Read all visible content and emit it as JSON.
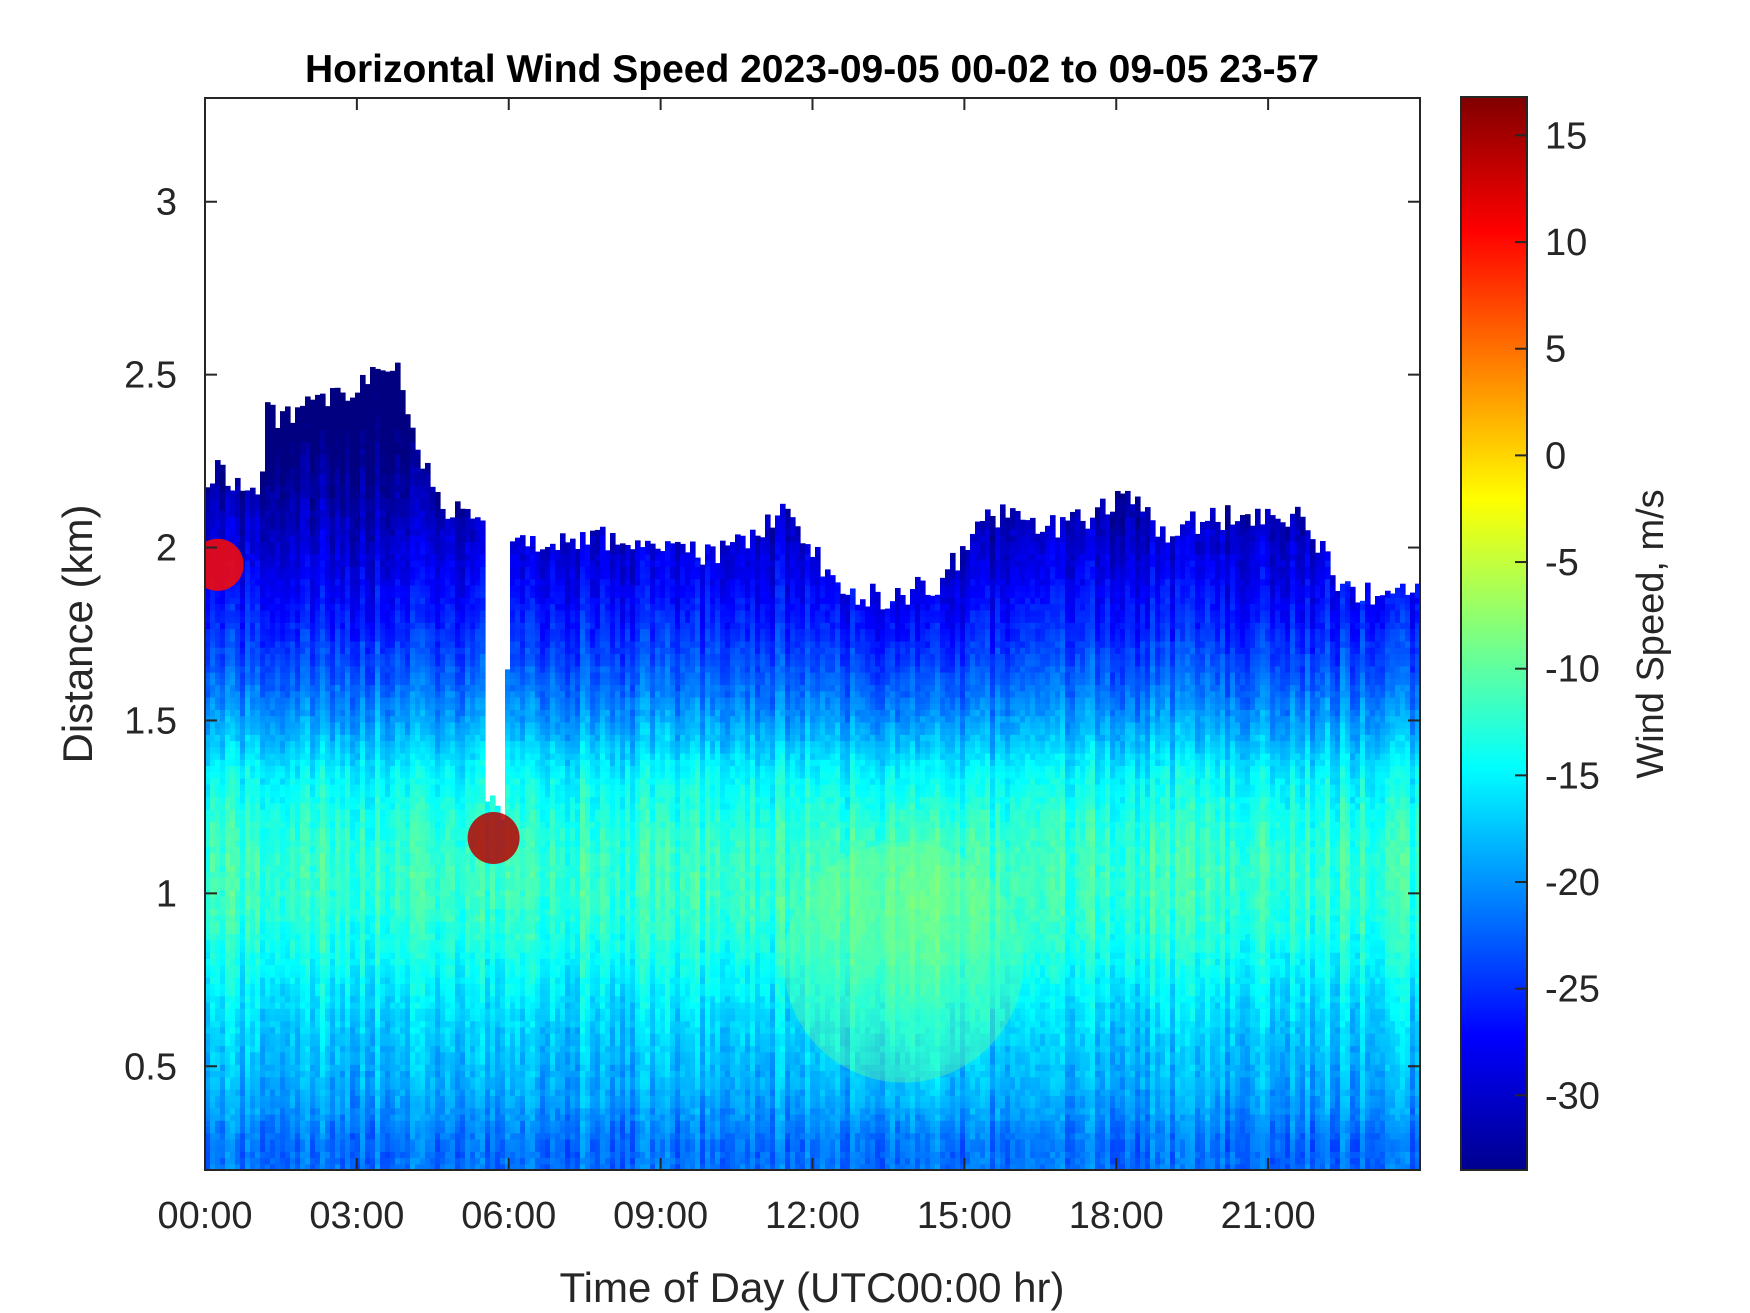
{
  "chart_data": {
    "type": "heatmap",
    "title": "Horizontal Wind Speed 2023-09-05 00-02 to 09-05 23-57",
    "xlabel": "Time of Day (UTC00:00 hr)",
    "ylabel": "Distance (km)",
    "colorbar_label": "Wind Speed, m/s",
    "colormap": "jet",
    "xlim_hours": [
      0,
      24
    ],
    "ylim_km": [
      0.2,
      3.3
    ],
    "clim": [
      -33.5,
      16.8
    ],
    "x_ticks": [
      {
        "value": 0,
        "label": "00:00"
      },
      {
        "value": 3,
        "label": "03:00"
      },
      {
        "value": 6,
        "label": "06:00"
      },
      {
        "value": 9,
        "label": "09:00"
      },
      {
        "value": 12,
        "label": "12:00"
      },
      {
        "value": 15,
        "label": "15:00"
      },
      {
        "value": 18,
        "label": "18:00"
      },
      {
        "value": 21,
        "label": "21:00"
      }
    ],
    "y_ticks": [
      {
        "value": 0.5,
        "label": "0.5"
      },
      {
        "value": 1,
        "label": "1"
      },
      {
        "value": 1.5,
        "label": "1.5"
      },
      {
        "value": 2,
        "label": "2"
      },
      {
        "value": 2.5,
        "label": "2.5"
      },
      {
        "value": 3,
        "label": "3"
      }
    ],
    "colorbar_ticks": [
      {
        "value": 15,
        "label": "15"
      },
      {
        "value": 10,
        "label": "10"
      },
      {
        "value": 5,
        "label": "5"
      },
      {
        "value": 0,
        "label": "0"
      },
      {
        "value": -5,
        "label": "-5"
      },
      {
        "value": -10,
        "label": "-10"
      },
      {
        "value": -15,
        "label": "-15"
      },
      {
        "value": -20,
        "label": "-20"
      },
      {
        "value": -25,
        "label": "-25"
      },
      {
        "value": -30,
        "label": "-30"
      }
    ],
    "data_top_km": [
      {
        "hour": 0.0,
        "km": 2.15
      },
      {
        "hour": 0.3,
        "km": 2.25
      },
      {
        "hour": 0.5,
        "km": 2.2
      },
      {
        "hour": 1.1,
        "km": 2.15
      },
      {
        "hour": 1.2,
        "km": 2.38
      },
      {
        "hour": 2.0,
        "km": 2.4
      },
      {
        "hour": 3.0,
        "km": 2.45
      },
      {
        "hour": 3.7,
        "km": 2.55
      },
      {
        "hour": 4.3,
        "km": 2.25
      },
      {
        "hour": 4.6,
        "km": 2.12
      },
      {
        "hour": 5.5,
        "km": 2.08
      },
      {
        "hour": 5.55,
        "km": 1.25
      },
      {
        "hour": 5.95,
        "km": 1.25
      },
      {
        "hour": 6.0,
        "km": 2.0
      },
      {
        "hour": 7.0,
        "km": 2.03
      },
      {
        "hour": 8.5,
        "km": 2.02
      },
      {
        "hour": 10.0,
        "km": 1.97
      },
      {
        "hour": 11.5,
        "km": 2.1
      },
      {
        "hour": 12.5,
        "km": 1.88
      },
      {
        "hour": 13.5,
        "km": 1.85
      },
      {
        "hour": 14.5,
        "km": 1.9
      },
      {
        "hour": 15.6,
        "km": 2.1
      },
      {
        "hour": 17.0,
        "km": 2.05
      },
      {
        "hour": 18.0,
        "km": 2.15
      },
      {
        "hour": 19.0,
        "km": 2.05
      },
      {
        "hour": 20.5,
        "km": 2.1
      },
      {
        "hour": 21.6,
        "km": 2.1
      },
      {
        "hour": 22.5,
        "km": 1.88
      },
      {
        "hour": 23.3,
        "km": 1.85
      },
      {
        "hour": 24.0,
        "km": 1.92
      }
    ],
    "features": [
      {
        "hour": 5.7,
        "km": 1.16,
        "value": 14,
        "note_visible": false
      },
      {
        "hour": 0.25,
        "km": 1.95,
        "value": 10,
        "note_visible": false
      },
      {
        "hour": 13.8,
        "km": 0.8,
        "value": -9,
        "note_visible": false
      }
    ],
    "grid": false
  }
}
